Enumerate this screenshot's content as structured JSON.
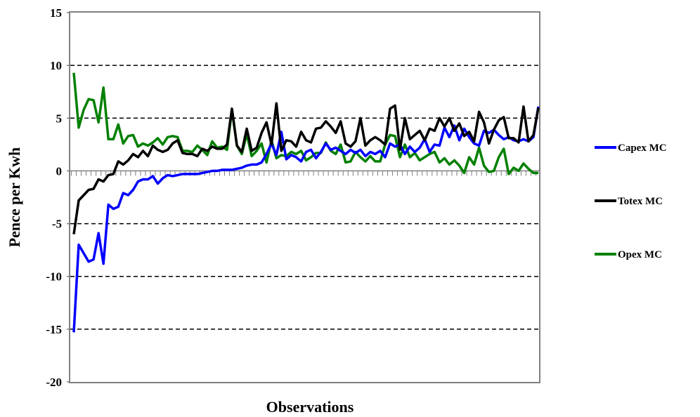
{
  "chart_data": {
    "type": "line",
    "xlabel": "Observations",
    "ylabel": "Pence per Kwh",
    "ylim": [
      -20,
      15
    ],
    "yticks": [
      -20,
      -15,
      -10,
      -5,
      0,
      5,
      10,
      15
    ],
    "grid": "horizontal-dashed",
    "legend_position": "right",
    "series": [
      {
        "name": "Capex MC",
        "color": "#0000ff",
        "values": [
          -15.3,
          -7.0,
          -7.8,
          -8.6,
          -8.4,
          -5.9,
          -8.8,
          -3.2,
          -3.6,
          -3.4,
          -2.1,
          -2.3,
          -1.8,
          -1.0,
          -0.8,
          -0.8,
          -0.5,
          -1.2,
          -0.7,
          -0.4,
          -0.5,
          -0.4,
          -0.3,
          -0.3,
          -0.3,
          -0.3,
          -0.2,
          -0.1,
          0.0,
          0.0,
          0.1,
          0.1,
          0.1,
          0.2,
          0.3,
          0.5,
          0.6,
          0.6,
          0.8,
          1.6,
          2.6,
          1.5,
          3.7,
          1.1,
          1.5,
          1.3,
          0.9,
          1.8,
          2.0,
          1.2,
          1.8,
          2.6,
          2.0,
          2.2,
          1.9,
          1.6,
          2.0,
          1.7,
          2.0,
          1.4,
          1.8,
          1.6,
          1.9,
          1.3,
          2.6,
          2.3,
          2.5,
          1.6,
          2.3,
          1.8,
          2.2,
          3.0,
          1.8,
          2.5,
          2.4,
          4.1,
          3.2,
          4.3,
          2.9,
          4.0,
          3.2,
          2.6,
          2.4,
          3.8,
          3.6,
          3.9,
          3.4,
          3.0,
          3.2,
          2.9,
          2.8,
          3.0,
          2.8,
          3.2,
          6.1
        ]
      },
      {
        "name": "Totex MC",
        "color": "#000000",
        "values": [
          -6.0,
          -2.8,
          -2.3,
          -1.8,
          -1.7,
          -0.8,
          -1.0,
          -0.4,
          -0.3,
          0.9,
          0.6,
          1.0,
          1.6,
          1.3,
          1.9,
          1.4,
          2.4,
          2.0,
          1.8,
          2.0,
          2.6,
          2.9,
          1.7,
          1.6,
          1.6,
          1.4,
          2.1,
          1.9,
          2.3,
          2.1,
          2.1,
          2.5,
          5.9,
          2.4,
          1.8,
          4.0,
          1.9,
          2.2,
          3.6,
          4.6,
          2.5,
          6.4,
          1.9,
          2.9,
          2.8,
          2.3,
          3.7,
          2.9,
          2.7,
          4.0,
          4.1,
          4.7,
          4.2,
          3.6,
          4.7,
          2.6,
          2.3,
          2.8,
          5.0,
          2.4,
          2.9,
          3.2,
          2.9,
          2.5,
          5.9,
          6.2,
          2.0,
          5.0,
          3.0,
          3.4,
          3.8,
          2.9,
          4.0,
          3.8,
          5.0,
          4.2,
          5.0,
          3.8,
          4.5,
          3.3,
          3.7,
          2.8,
          5.6,
          4.6,
          2.6,
          3.9,
          4.8,
          5.1,
          3.1,
          3.1,
          2.7,
          6.1,
          2.8,
          3.4,
          6.0
        ]
      },
      {
        "name": "Opex MC",
        "color": "#008000",
        "values": [
          9.3,
          4.1,
          5.8,
          6.8,
          6.7,
          4.6,
          7.9,
          3.0,
          3.0,
          4.4,
          2.6,
          3.3,
          3.4,
          2.3,
          2.6,
          2.4,
          2.7,
          3.1,
          2.5,
          3.2,
          3.3,
          3.2,
          1.9,
          1.9,
          1.8,
          2.4,
          2.0,
          1.5,
          2.8,
          2.2,
          2.3,
          2.0,
          5.8,
          2.4,
          1.6,
          3.5,
          1.4,
          1.9,
          2.6,
          0.8,
          2.9,
          1.2,
          1.5,
          1.4,
          1.8,
          1.6,
          1.9,
          1.0,
          1.3,
          1.7,
          1.7,
          2.7,
          1.9,
          1.6,
          2.5,
          0.8,
          0.9,
          1.8,
          1.3,
          0.9,
          1.4,
          0.9,
          0.9,
          2.5,
          3.4,
          3.3,
          1.3,
          2.5,
          1.3,
          1.7,
          1.0,
          1.3,
          1.6,
          1.8,
          0.8,
          1.2,
          0.6,
          1.0,
          0.5,
          -0.2,
          1.3,
          0.6,
          2.2,
          0.5,
          -0.1,
          0.0,
          1.3,
          2.1,
          -0.3,
          0.3,
          0.0,
          0.7,
          0.2,
          -0.2,
          -0.2
        ]
      }
    ]
  }
}
